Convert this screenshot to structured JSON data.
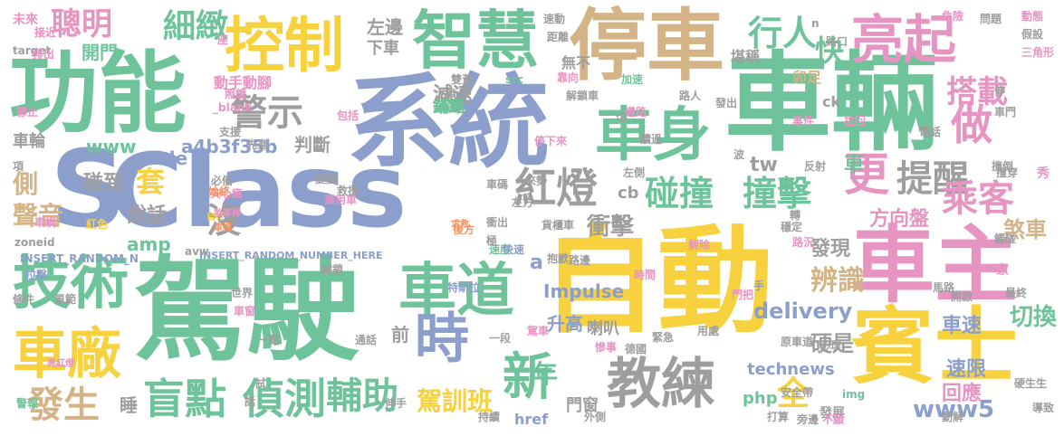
{
  "palette": {
    "teal": "#6fc39a",
    "blue": "#8c9fcc",
    "yellow": "#f7d23e",
    "pink": "#e694c2",
    "gray": "#9e9e9e",
    "tan": "#d4b487",
    "green": "#9fd164",
    "orange": "#f09264"
  },
  "words": [
    {
      "text": "車輛",
      "color": "teal"
    },
    {
      "text": "系統",
      "color": "blue"
    },
    {
      "text": "自動",
      "color": "yellow"
    },
    {
      "text": "駕駛",
      "color": "teal"
    },
    {
      "text": "Class",
      "color": "blue"
    },
    {
      "text": "S",
      "color": "blue"
    },
    {
      "text": "功能",
      "color": "teal"
    },
    {
      "text": "停車",
      "color": "tan"
    },
    {
      "text": "車主",
      "color": "pink"
    },
    {
      "text": "賓士",
      "color": "yellow"
    },
    {
      "text": "控制",
      "color": "yellow"
    },
    {
      "text": "智慧",
      "color": "teal"
    },
    {
      "text": "亮起",
      "color": "pink"
    },
    {
      "text": "車身",
      "color": "teal"
    },
    {
      "text": "技術",
      "color": "teal"
    },
    {
      "text": "車道",
      "color": "teal"
    },
    {
      "text": "車廠",
      "color": "yellow"
    },
    {
      "text": "時",
      "color": "blue"
    },
    {
      "text": "教練",
      "color": "gray"
    },
    {
      "text": "新",
      "color": "teal"
    },
    {
      "text": "盲點",
      "color": "teal"
    },
    {
      "text": "偵測",
      "color": "teal"
    },
    {
      "text": "輔助",
      "color": "teal"
    },
    {
      "text": "發生",
      "color": "tan"
    },
    {
      "text": "警示",
      "color": "gray"
    },
    {
      "text": "做",
      "color": "pink"
    },
    {
      "text": "更",
      "color": "pink"
    },
    {
      "text": "碰撞",
      "color": "teal"
    },
    {
      "text": "撞擊",
      "color": "teal"
    },
    {
      "text": "提醒",
      "color": "gray"
    },
    {
      "text": "乘客",
      "color": "pink"
    },
    {
      "text": "紅燈",
      "color": "gray"
    },
    {
      "text": "搭載",
      "color": "pink"
    },
    {
      "text": "行人",
      "color": "teal"
    },
    {
      "text": "快",
      "color": "teal"
    },
    {
      "text": "細緻",
      "color": "teal"
    },
    {
      "text": "聰明",
      "color": "pink"
    },
    {
      "text": "全",
      "color": "yellow"
    },
    {
      "text": "年",
      "color": "teal"
    },
    {
      "text": "駕訓班",
      "color": "yellow"
    },
    {
      "text": "Impulse",
      "color": "blue"
    },
    {
      "text": "delivery",
      "color": "blue"
    },
    {
      "text": "technews",
      "color": "blue"
    },
    {
      "text": "www5",
      "color": "blue"
    },
    {
      "text": "升高",
      "color": "blue"
    },
    {
      "text": "車速",
      "color": "blue"
    },
    {
      "text": "切換",
      "color": "teal"
    },
    {
      "text": "速限",
      "color": "blue"
    },
    {
      "text": "回應",
      "color": "pink"
    },
    {
      "text": "辨識",
      "color": "tan"
    },
    {
      "text": "硬是",
      "color": "gray"
    },
    {
      "text": "發現",
      "color": "gray"
    },
    {
      "text": "方向盤",
      "color": "pink"
    },
    {
      "text": "煞車",
      "color": "tan"
    },
    {
      "text": "衝擊",
      "color": "gray"
    },
    {
      "text": "cb",
      "color": "gray"
    },
    {
      "text": "tw",
      "color": "gray"
    },
    {
      "text": "車",
      "color": "teal"
    },
    {
      "text": "沒",
      "color": "gray"
    },
    {
      "text": "套",
      "color": "yellow"
    },
    {
      "text": "說話",
      "color": "gray"
    },
    {
      "text": "聲音",
      "color": "tan"
    },
    {
      "text": "側",
      "color": "tan"
    },
    {
      "text": "碰到",
      "color": "gray"
    },
    {
      "text": "amp",
      "color": "teal"
    },
    {
      "text": "a4b3f35b",
      "color": "blue"
    },
    {
      "text": "Side",
      "color": "blue"
    },
    {
      "text": "www",
      "color": "teal"
    },
    {
      "text": "判斷",
      "color": "gray"
    },
    {
      "text": "車輪",
      "color": "gray"
    },
    {
      "text": "開門",
      "color": "teal"
    },
    {
      "text": "減速",
      "color": "gray"
    },
    {
      "text": "左邊",
      "color": "gray"
    },
    {
      "text": "下車",
      "color": "gray"
    },
    {
      "text": "堪稱",
      "color": "gray"
    },
    {
      "text": "鋪路",
      "color": "teal"
    },
    {
      "text": "動手動腳",
      "color": "pink"
    },
    {
      "text": "php",
      "color": "teal"
    },
    {
      "text": "href",
      "color": "blue"
    },
    {
      "text": "門窗",
      "color": "gray"
    },
    {
      "text": "睡",
      "color": "gray"
    },
    {
      "text": "前",
      "color": "gray"
    },
    {
      "text": "a",
      "color": "blue"
    },
    {
      "text": "喇叭",
      "color": "gray"
    },
    {
      "text": "無不",
      "color": "gray"
    },
    {
      "text": "卯足",
      "color": "tan"
    },
    {
      "text": "未來",
      "color": "pink"
    },
    {
      "text": "加速",
      "color": "teal"
    },
    {
      "text": "發展",
      "color": "gray"
    },
    {
      "text": "target",
      "color": "gray"
    },
    {
      "text": "_blank",
      "color": "pink"
    },
    {
      "text": "INSERT_RANDOM_N",
      "color": "blue"
    },
    {
      "text": "INSERT_RANDOM_NUMBER_HERE",
      "color": "blue"
    },
    {
      "text": "zoneid",
      "color": "gray"
    },
    {
      "text": "ck",
      "color": "gray"
    },
    {
      "text": "src",
      "color": "teal"
    },
    {
      "text": "avw",
      "color": "gray"
    },
    {
      "text": "img",
      "color": "teal"
    },
    {
      "text": "特斯拉",
      "color": "blue"
    },
    {
      "text": "失心瘋",
      "color": "pink"
    },
    {
      "text": "支援",
      "color": "gray"
    },
    {
      "text": "照鏡",
      "color": "pink"
    },
    {
      "text": "包括",
      "color": "pink"
    },
    {
      "text": "先進",
      "color": "gray"
    },
    {
      "text": "停下來",
      "color": "pink"
    },
    {
      "text": "上鎖",
      "color": "gray"
    },
    {
      "text": "雙黃",
      "color": "gray"
    },
    {
      "text": "鋪路",
      "color": "teal"
    },
    {
      "text": "速度",
      "color": "teal"
    },
    {
      "text": "貨櫃車",
      "color": "gray"
    },
    {
      "text": "穩定",
      "color": "gray"
    },
    {
      "text": "電話",
      "color": "gray"
    },
    {
      "text": "撞穿",
      "color": "gray"
    },
    {
      "text": "後方",
      "color": "orange"
    },
    {
      "text": "求救",
      "color": "orange"
    },
    {
      "text": "衝出",
      "color": "gray"
    },
    {
      "text": "車禍",
      "color": "pink"
    },
    {
      "text": "一段",
      "color": "gray"
    },
    {
      "text": "世界",
      "color": "gray"
    },
    {
      "text": "車窗",
      "color": "pink"
    },
    {
      "text": "駕車",
      "color": "pink"
    },
    {
      "text": "慘事",
      "color": "pink"
    },
    {
      "text": "持續",
      "color": "gray"
    },
    {
      "text": "外側",
      "color": "gray"
    },
    {
      "text": "德國",
      "color": "gray"
    },
    {
      "text": "打算",
      "color": "gray"
    },
    {
      "text": "不願",
      "color": "pink"
    },
    {
      "text": "伸手",
      "color": "gray"
    },
    {
      "text": "警報",
      "color": "teal"
    },
    {
      "text": "條件",
      "color": "gray"
    },
    {
      "text": "風範",
      "color": "gray"
    },
    {
      "text": "拉擊",
      "color": "blue"
    },
    {
      "text": "紅色",
      "color": "yellow"
    },
    {
      "text": "自行",
      "color": "yellow"
    },
    {
      "text": "始終",
      "color": "orange"
    },
    {
      "text": "必備",
      "color": "gray"
    },
    {
      "text": "變換",
      "color": "gray"
    },
    {
      "text": "運用車",
      "color": "pink"
    },
    {
      "text": "救援",
      "color": "gray"
    },
    {
      "text": "解鎖",
      "color": "gray"
    },
    {
      "text": "通話",
      "color": "gray"
    },
    {
      "text": "一點",
      "color": "gray"
    },
    {
      "text": "緊急",
      "color": "gray"
    },
    {
      "text": "用處",
      "color": "gray"
    },
    {
      "text": "門把",
      "color": "pink"
    },
    {
      "text": "開啟",
      "color": "gray"
    },
    {
      "text": "馬路",
      "color": "gray"
    },
    {
      "text": "原車道",
      "color": "gray"
    },
    {
      "text": "心理",
      "color": "gray"
    },
    {
      "text": "最終",
      "color": "gray"
    },
    {
      "text": "硬生生",
      "color": "gray"
    },
    {
      "text": "導致",
      "color": "gray"
    },
    {
      "text": "動解",
      "color": "gray"
    },
    {
      "text": "安全帶",
      "color": "gray"
    },
    {
      "text": "路況",
      "color": "pink"
    },
    {
      "text": "解除",
      "color": "pink"
    },
    {
      "text": "極",
      "color": "gray"
    },
    {
      "text": "抱歉",
      "color": "gray"
    },
    {
      "text": "路邊",
      "color": "gray"
    },
    {
      "text": "旁邊",
      "color": "gray"
    },
    {
      "text": "試",
      "color": "gray"
    },
    {
      "text": "話",
      "color": "gray"
    },
    {
      "text": "家",
      "color": "pink"
    },
    {
      "text": "觸碰",
      "color": "gray"
    },
    {
      "text": "手",
      "color": "gray"
    },
    {
      "text": "時間",
      "color": "pink"
    },
    {
      "text": "轉",
      "color": "gray"
    },
    {
      "text": "事件",
      "color": "pink"
    },
    {
      "text": "拉回",
      "color": "pink"
    },
    {
      "text": "發出",
      "color": "gray"
    },
    {
      "text": "路人",
      "color": "gray"
    },
    {
      "text": "遵路",
      "color": "pink"
    },
    {
      "text": "解鎖車",
      "color": "gray"
    },
    {
      "text": "距離",
      "color": "gray"
    },
    {
      "text": "排出",
      "color": "pink"
    },
    {
      "text": "路口",
      "color": "gray"
    },
    {
      "text": "速動",
      "color": "gray"
    },
    {
      "text": "危險",
      "color": "pink"
    },
    {
      "text": "問題",
      "color": "gray"
    },
    {
      "text": "動態",
      "color": "pink"
    },
    {
      "text": "假設",
      "color": "gray"
    },
    {
      "text": "三角形",
      "color": "pink"
    },
    {
      "text": "車門",
      "color": "gray"
    },
    {
      "text": "項",
      "color": "gray"
    },
    {
      "text": "靜止",
      "color": "pink"
    },
    {
      "text": "來勢",
      "color": "gray"
    },
    {
      "text": "左側",
      "color": "gray"
    },
    {
      "text": "反射",
      "color": "gray"
    },
    {
      "text": "左方",
      "color": "gray"
    },
    {
      "text": "撞倒",
      "color": "gray"
    },
    {
      "text": "切",
      "color": "gray"
    },
    {
      "text": "續過",
      "color": "gray"
    },
    {
      "text": "波",
      "color": "gray"
    },
    {
      "text": "車碼",
      "color": "gray"
    },
    {
      "text": "亮紅燈",
      "color": "pink"
    },
    {
      "text": "煞車桿",
      "color": "pink"
    },
    {
      "text": "接近",
      "color": "pink"
    },
    {
      "text": "座",
      "color": "pink"
    },
    {
      "text": "停",
      "color": "gray"
    },
    {
      "text": "車擋",
      "color": "orange"
    },
    {
      "text": "快速",
      "color": "blue"
    },
    {
      "text": "靠向",
      "color": "pink"
    },
    {
      "text": "秀",
      "color": "pink"
    },
    {
      "text": "n",
      "color": "gray"
    }
  ]
}
